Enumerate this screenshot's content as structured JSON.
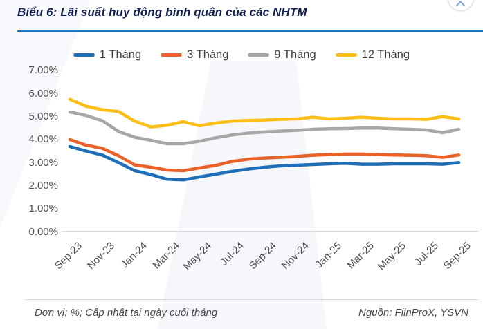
{
  "page": {
    "title": "Biểu 6: Lãi suất huy động bình quân của các NHTM",
    "footer_left": "Đơn vị: %; Cập nhật tại ngày cuối tháng",
    "footer_right": "Nguồn: FiinProX, YSVN"
  },
  "colors": {
    "title_navy": "#101f4e",
    "title_rule_blue": "#1b75bc",
    "axis_text": "#4d4d4d",
    "series_blue": "#1f6fb8",
    "series_orange": "#e8622a",
    "series_gray": "#a7a7a7",
    "series_yellow": "#fdbf17"
  },
  "chart_data": {
    "type": "line",
    "title": "Biểu 6: Lãi suất huy động bình quân của các NHTM",
    "unit_note": "Đơn vị: %; Cập nhật tại ngày cuối tháng",
    "source_note": "Nguồn: FiinProX, YSVN",
    "x": [
      "Sep-23",
      "Oct-23",
      "Nov-23",
      "Dec-23",
      "Jan-24",
      "Feb-24",
      "Mar-24",
      "Apr-24",
      "May-24",
      "Jun-24",
      "Jul-24",
      "Aug-24",
      "Sep-24",
      "Oct-24",
      "Nov-24",
      "Dec-24",
      "Jan-25",
      "Feb-25",
      "Mar-25",
      "Apr-25",
      "May-25",
      "Jun-25",
      "Jul-25",
      "Aug-25",
      "Sep-25"
    ],
    "x_tick_shown_every": 2,
    "x_tick_labels": [
      "Sep-23",
      "Nov-23",
      "Jan-24",
      "Mar-24",
      "May-24",
      "Jul-24",
      "Sep-24",
      "Nov-24",
      "Jan-25",
      "Mar-25",
      "May-25",
      "Jul-25",
      "Sep-25"
    ],
    "y_ticks": [
      "7.00%",
      "6.00%",
      "5.00%",
      "4.00%",
      "3.00%",
      "2.00%",
      "1.00%",
      "0.00%"
    ],
    "ylim": [
      0,
      7
    ],
    "grid": false,
    "legend_position": "top",
    "series": [
      {
        "name": "1 Tháng",
        "color": "#1f6fb8",
        "values": [
          3.7,
          3.5,
          3.33,
          3.0,
          2.65,
          2.48,
          2.28,
          2.25,
          2.38,
          2.5,
          2.62,
          2.72,
          2.8,
          2.86,
          2.89,
          2.92,
          2.95,
          2.97,
          2.93,
          2.93,
          2.95,
          2.95,
          2.95,
          2.93,
          3.0
        ]
      },
      {
        "name": "3 Tháng",
        "color": "#e8622a",
        "values": [
          4.0,
          3.76,
          3.62,
          3.3,
          2.9,
          2.8,
          2.68,
          2.65,
          2.77,
          2.88,
          3.05,
          3.15,
          3.2,
          3.23,
          3.27,
          3.32,
          3.35,
          3.37,
          3.37,
          3.35,
          3.33,
          3.32,
          3.3,
          3.23,
          3.33
        ]
      },
      {
        "name": "9 Tháng",
        "color": "#a7a7a7",
        "values": [
          5.2,
          5.05,
          4.82,
          4.35,
          4.1,
          3.97,
          3.82,
          3.82,
          3.93,
          4.08,
          4.2,
          4.28,
          4.33,
          4.37,
          4.4,
          4.45,
          4.47,
          4.48,
          4.5,
          4.5,
          4.47,
          4.45,
          4.42,
          4.3,
          4.45
        ]
      },
      {
        "name": "12 Tháng",
        "color": "#fdbf17",
        "values": [
          5.75,
          5.45,
          5.3,
          5.22,
          4.8,
          4.55,
          4.62,
          4.78,
          4.6,
          4.72,
          4.8,
          4.83,
          4.85,
          4.88,
          4.9,
          4.97,
          4.9,
          4.93,
          4.97,
          4.93,
          4.9,
          4.9,
          4.88,
          5.0,
          4.9
        ]
      }
    ]
  }
}
